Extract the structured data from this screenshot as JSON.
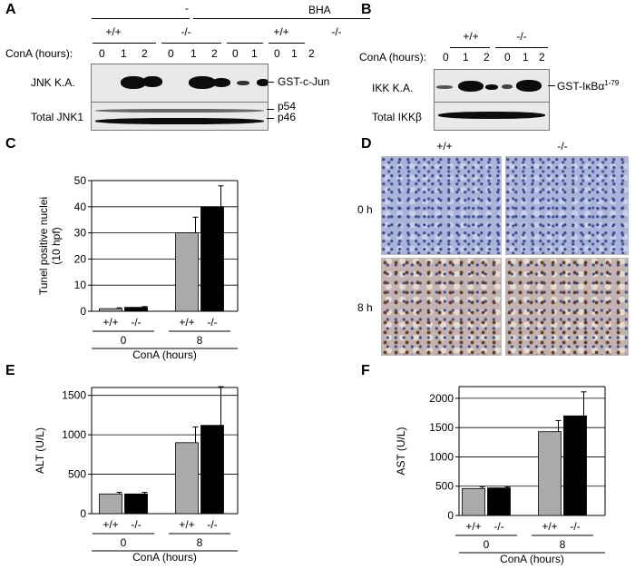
{
  "panels": {
    "A": {
      "label": "A",
      "treatment_none": "-",
      "treatment_bha": "BHA",
      "genotypes": [
        "+/+",
        "-/-",
        "+/+",
        "-/-"
      ],
      "conA_label": "ConA (hours):",
      "times": [
        "0",
        "1",
        "2",
        "0",
        "1",
        "2",
        "0",
        "1",
        "0",
        "1",
        "2"
      ],
      "row1_label": "JNK K.A.",
      "row1_right": "GST-c-Jun",
      "row2_label": "Total JNK1",
      "row2_right_top": "p54",
      "row2_right_bottom": "p46"
    },
    "B": {
      "label": "B",
      "genotypes": [
        "+/+",
        "-/-"
      ],
      "conA_label": "ConA (hours):",
      "times": [
        "0",
        "1",
        "2",
        "0",
        "1",
        "2"
      ],
      "row1_label": "IKK K.A.",
      "row1_right": "GST-IκBα",
      "row1_right_sup": "1-79",
      "row2_label": "Total IKKβ"
    },
    "D": {
      "label": "D",
      "col_labels": [
        "+/+",
        "-/-"
      ],
      "row_labels": [
        "0 h",
        "8 h"
      ]
    }
  },
  "chart_data": [
    {
      "panel": "C",
      "type": "bar",
      "ylabel_line1": "Tunel positive nuclei",
      "ylabel_line2": "(10 hpf)",
      "ylim": [
        0,
        50
      ],
      "yticks": [
        0,
        10,
        20,
        30,
        40,
        50
      ],
      "groups": [
        {
          "time": "0",
          "genotypes": [
            "+/+",
            "-/-"
          ]
        },
        {
          "time": "8",
          "genotypes": [
            "+/+",
            "-/-"
          ]
        }
      ],
      "xlabel": "ConA (hours)",
      "series": [
        {
          "genotype": "+/+",
          "color": "#aaaaaa",
          "values": [
            1.0,
            30.0
          ],
          "errors": [
            0.3,
            6.0
          ]
        },
        {
          "genotype": "-/-",
          "color": "#000000",
          "values": [
            1.5,
            40.0
          ],
          "errors": [
            0.3,
            8.0
          ]
        }
      ],
      "grid": true
    },
    {
      "panel": "E",
      "type": "bar",
      "ylabel": "ALT (U/L)",
      "ylim": [
        0,
        1600
      ],
      "yticks": [
        0,
        500,
        1000,
        1500
      ],
      "groups": [
        {
          "time": "0",
          "genotypes": [
            "+/+",
            "-/-"
          ]
        },
        {
          "time": "8",
          "genotypes": [
            "+/+",
            "-/-"
          ]
        }
      ],
      "xlabel": "ConA (hours)",
      "series": [
        {
          "genotype": "+/+",
          "color": "#aaaaaa",
          "values": [
            250,
            900
          ],
          "errors": [
            20,
            200
          ]
        },
        {
          "genotype": "-/-",
          "color": "#000000",
          "values": [
            250,
            1120
          ],
          "errors": [
            20,
            490
          ]
        }
      ],
      "grid": true
    },
    {
      "panel": "F",
      "type": "bar",
      "ylabel": "AST (U/L)",
      "ylim": [
        0,
        2200
      ],
      "yticks": [
        0,
        500,
        1000,
        1500,
        2000
      ],
      "groups": [
        {
          "time": "0",
          "genotypes": [
            "+/+",
            "-/-"
          ]
        },
        {
          "time": "8",
          "genotypes": [
            "+/+",
            "-/-"
          ]
        }
      ],
      "xlabel": "ConA (hours)",
      "series": [
        {
          "genotype": "+/+",
          "color": "#aaaaaa",
          "values": [
            460,
            1430
          ],
          "errors": [
            30,
            190
          ]
        },
        {
          "genotype": "-/-",
          "color": "#000000",
          "values": [
            470,
            1700
          ],
          "errors": [
            20,
            410
          ]
        }
      ],
      "grid": true
    }
  ]
}
